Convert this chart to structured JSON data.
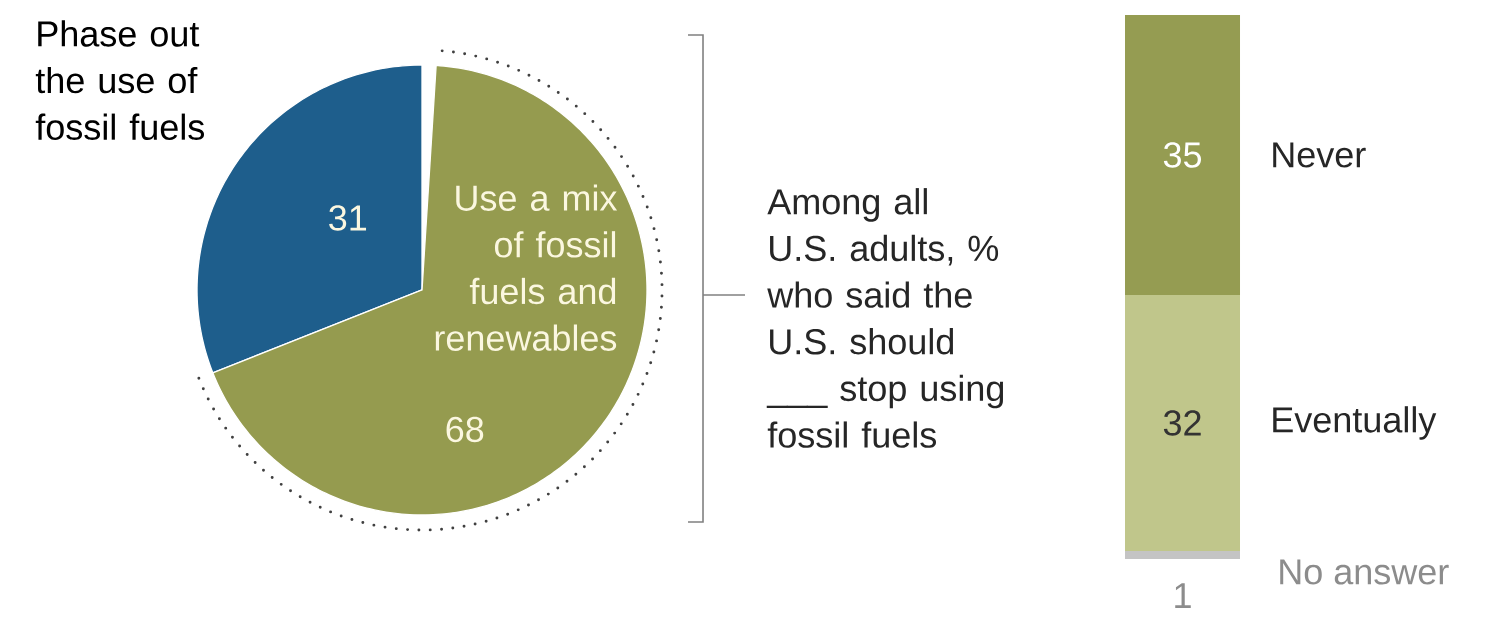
{
  "chart_data": [
    {
      "type": "pie",
      "categories": [
        "Phase out the use of fossil fuels",
        "Use a mix of fossil fuels and renewables"
      ],
      "values": [
        31,
        68
      ],
      "colors": [
        "#1e5e8c",
        "#959b4f"
      ],
      "data_labels": true
    },
    {
      "type": "bar",
      "title": "Among all U.S. adults, % who said the U.S. should ___ stop using fossil fuels",
      "categories": [
        null
      ],
      "stacked": true,
      "data_labels": true,
      "series": [
        {
          "name": "No answer",
          "color": "#c4c4c4",
          "values": [
            1
          ]
        },
        {
          "name": "Eventually",
          "color": "#c0c68b",
          "values": [
            32
          ]
        },
        {
          "name": "Never",
          "color": "#959c52",
          "values": [
            35
          ]
        }
      ]
    }
  ]
}
